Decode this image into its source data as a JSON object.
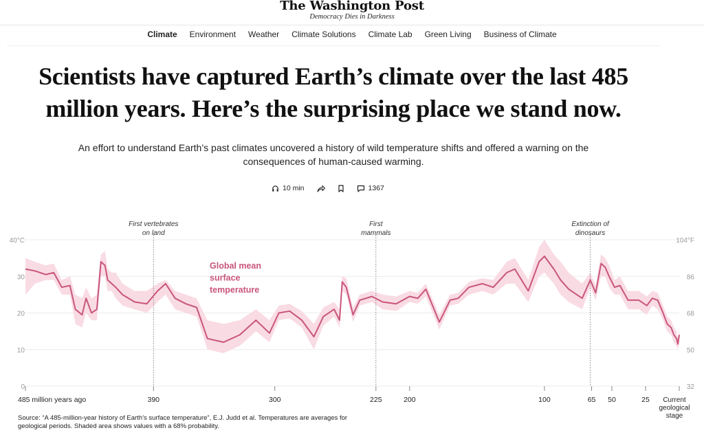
{
  "masthead": {
    "logo": "The Washington Post",
    "tagline": "Democracy Dies in Darkness"
  },
  "nav": {
    "items": [
      "Climate",
      "Environment",
      "Weather",
      "Climate Solutions",
      "Climate Lab",
      "Green Living",
      "Business of Climate"
    ]
  },
  "article": {
    "headline": "Scientists have captured Earth’s climate over the last 485 million years. Here’s the surprising place we stand now.",
    "dek": "An effort to understand Earth’s past climates uncovered a history of wild temperature shifts and offered a warning on the consequences of human-caused warming.",
    "listen_label": "10 min",
    "comments_count": "1367"
  },
  "source_note": "Source: “A 485-million-year history of Earth’s surface temperature”, E.J. Judd et al. Temperatures are averages for geological periods. Shaded area shows values with a 68% probability.",
  "colors": {
    "line": "#c8557a",
    "band": "#f9dbe4",
    "grid": "#ececec",
    "axis_text": "#999999"
  },
  "chart_data": {
    "type": "line",
    "title": "Global mean surface temperature",
    "series_label_lines": [
      "Global mean",
      "surface",
      "temperature"
    ],
    "xlabel": "million years ago",
    "ylabel_left": "°C",
    "ylabel_right": "°F",
    "xlim": [
      485,
      0
    ],
    "ylim": [
      0,
      40
    ],
    "grid": true,
    "y_ticks_left": [
      "40°C",
      "30",
      "20",
      "10",
      "0"
    ],
    "y_ticks_right": [
      "104°F",
      "86",
      "68",
      "50",
      "32"
    ],
    "x_ticks": [
      {
        "value": 485,
        "label": "485 million years ago"
      },
      {
        "value": 390,
        "label": "390"
      },
      {
        "value": 300,
        "label": "300"
      },
      {
        "value": 225,
        "label": "225"
      },
      {
        "value": 200,
        "label": "200"
      },
      {
        "value": 100,
        "label": "100"
      },
      {
        "value": 65,
        "label": "65"
      },
      {
        "value": 50,
        "label": "50"
      },
      {
        "value": 25,
        "label": "25"
      },
      {
        "value": 0,
        "label": "Current geological stage"
      }
    ],
    "annotations": [
      {
        "value": 390,
        "lines": [
          "First vertebrates",
          "on land"
        ]
      },
      {
        "value": 225,
        "lines": [
          "First",
          "mammals"
        ]
      },
      {
        "value": 66,
        "lines": [
          "Extinction of",
          "dinosaurs"
        ]
      }
    ],
    "series": [
      {
        "name": "Global mean surface temperature",
        "x": [
          485,
          478,
          470,
          464,
          458,
          452,
          448,
          443,
          440,
          436,
          432,
          429,
          426,
          424,
          421,
          418,
          413,
          404,
          395,
          387,
          381,
          374,
          366,
          358,
          350,
          338,
          326,
          314,
          304,
          297,
          289,
          280,
          271,
          264,
          256,
          252,
          250,
          247,
          242,
          237,
          228,
          220,
          210,
          200,
          194,
          188,
          178,
          170,
          164,
          156,
          146,
          138,
          128,
          122,
          112,
          104,
          100,
          93,
          88,
          82,
          72,
          66,
          62,
          58,
          55,
          52,
          48,
          44,
          38,
          30,
          24,
          20,
          16,
          12,
          9,
          6,
          4,
          2,
          1,
          0
        ],
        "values": [
          32,
          31.5,
          30.5,
          31,
          27,
          27.5,
          21,
          19.5,
          24,
          20,
          21,
          34,
          33,
          29,
          28,
          27,
          25,
          23,
          22.5,
          26,
          28,
          24,
          22.5,
          21.5,
          13,
          12,
          14,
          18,
          14.5,
          20,
          20.5,
          18,
          13.5,
          19,
          21,
          18,
          28.5,
          27,
          19.5,
          23.5,
          24.5,
          23,
          22.5,
          24.5,
          24,
          26.5,
          17.5,
          23.5,
          24,
          27,
          28,
          27,
          31,
          32,
          26,
          34,
          35.5,
          32,
          29,
          26.5,
          24,
          29,
          25.5,
          33.5,
          32.5,
          30,
          27,
          27.5,
          23.5,
          23.5,
          22,
          24,
          23.5,
          20,
          17,
          16,
          14,
          13,
          11.5,
          14
        ]
      }
    ],
    "band": {
      "upper": [
        35,
        34,
        33,
        33.5,
        29,
        30,
        25,
        24,
        27,
        24,
        25,
        36,
        37,
        32,
        31,
        31,
        28,
        26,
        26,
        28,
        29,
        26,
        25,
        24,
        18,
        17,
        18,
        21,
        18,
        22,
        22.5,
        20.5,
        17,
        21.5,
        23,
        21,
        30,
        29.5,
        21.5,
        25,
        26,
        25,
        24.5,
        26,
        25.5,
        28,
        19.5,
        25,
        25.5,
        28.5,
        29.5,
        29,
        34,
        35,
        29,
        38,
        40,
        36,
        34,
        31,
        28,
        31,
        27.5,
        36,
        35,
        33,
        29,
        30,
        26,
        26,
        24.5,
        26,
        25.5,
        22,
        19,
        18,
        16,
        15,
        13,
        16
      ],
      "lower": [
        25,
        28,
        29,
        29,
        25,
        25,
        17,
        16,
        20,
        18,
        18,
        30,
        30,
        26,
        26,
        24,
        22,
        21,
        20,
        23,
        25,
        21,
        20,
        19,
        10,
        9,
        11,
        15,
        12,
        18,
        18.5,
        16,
        10,
        16.5,
        19,
        16,
        26,
        25,
        17.5,
        22,
        23,
        21,
        20.5,
        23,
        22.5,
        24.5,
        15.5,
        22,
        22.5,
        25,
        26,
        25,
        28,
        28,
        23,
        30,
        31,
        28,
        25,
        23,
        21,
        27,
        23.5,
        30,
        30,
        27,
        25,
        25,
        21,
        21,
        19.5,
        22,
        21,
        18,
        15,
        14,
        12,
        11,
        10,
        12
      ]
    }
  }
}
